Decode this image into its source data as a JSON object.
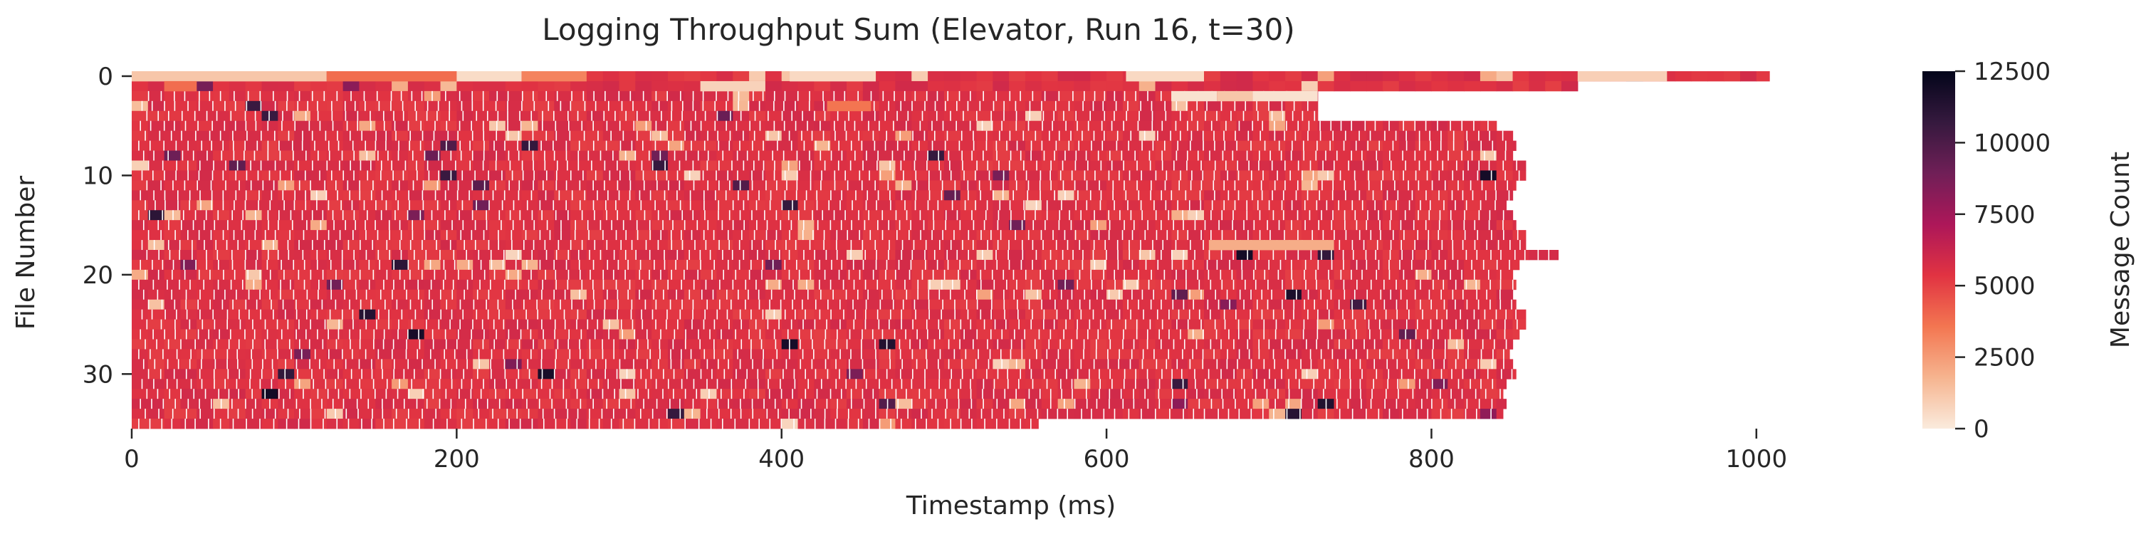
{
  "chart_data": {
    "type": "heatmap",
    "title": "Logging Throughput Sum (Elevator, Run 16, t=30)",
    "xlabel": "Timestamp (ms)",
    "ylabel": "File Number",
    "colorbar_label": "Message Count",
    "xlim": [
      0,
      1100
    ],
    "ylim": [
      0,
      36
    ],
    "x_ticks": [
      0,
      200,
      400,
      600,
      800,
      1000
    ],
    "y_ticks": [
      0,
      10,
      20,
      30
    ],
    "colorbar_range": [
      0,
      12500
    ],
    "colorbar_ticks": [
      0,
      2500,
      5000,
      7500,
      10000,
      12500
    ],
    "colormap": "rocket_r",
    "colormap_stops": [
      "#faebdd",
      "#f6b48f",
      "#f37651",
      "#e13342",
      "#ad1759",
      "#701f57",
      "#35193e",
      "#03051a"
    ],
    "typical_value": 5500,
    "num_files": 36,
    "row_end_ms": [
      1008,
      890,
      730,
      730,
      730,
      840,
      850,
      852,
      850,
      858,
      858,
      852,
      850,
      846,
      850,
      852,
      858,
      858,
      878,
      854,
      850,
      852,
      850,
      852,
      858,
      858,
      854,
      850,
      848,
      850,
      852,
      846,
      844,
      846,
      844,
      558
    ],
    "low_value_bands": [
      {
        "file": 0,
        "start_ms": 0,
        "end_ms": 120,
        "value": 1200
      },
      {
        "file": 0,
        "start_ms": 120,
        "end_ms": 200,
        "value": 3800
      },
      {
        "file": 0,
        "start_ms": 200,
        "end_ms": 240,
        "value": 500
      },
      {
        "file": 0,
        "start_ms": 240,
        "end_ms": 280,
        "value": 3200
      },
      {
        "file": 0,
        "start_ms": 405,
        "end_ms": 458,
        "value": 600
      },
      {
        "file": 0,
        "start_ms": 612,
        "end_ms": 660,
        "value": 600
      },
      {
        "file": 0,
        "start_ms": 890,
        "end_ms": 945,
        "value": 900
      },
      {
        "file": 1,
        "start_ms": 20,
        "end_ms": 40,
        "value": 3800
      },
      {
        "file": 1,
        "start_ms": 350,
        "end_ms": 390,
        "value": 800
      },
      {
        "file": 3,
        "start_ms": 428,
        "end_ms": 455,
        "value": 3600
      },
      {
        "file": 2,
        "start_ms": 640,
        "end_ms": 668,
        "value": 300
      },
      {
        "file": 2,
        "start_ms": 668,
        "end_ms": 690,
        "value": 1200
      },
      {
        "file": 2,
        "start_ms": 690,
        "end_ms": 730,
        "value": 300
      },
      {
        "file": 17,
        "start_ms": 663,
        "end_ms": 740,
        "value": 2000
      }
    ]
  }
}
